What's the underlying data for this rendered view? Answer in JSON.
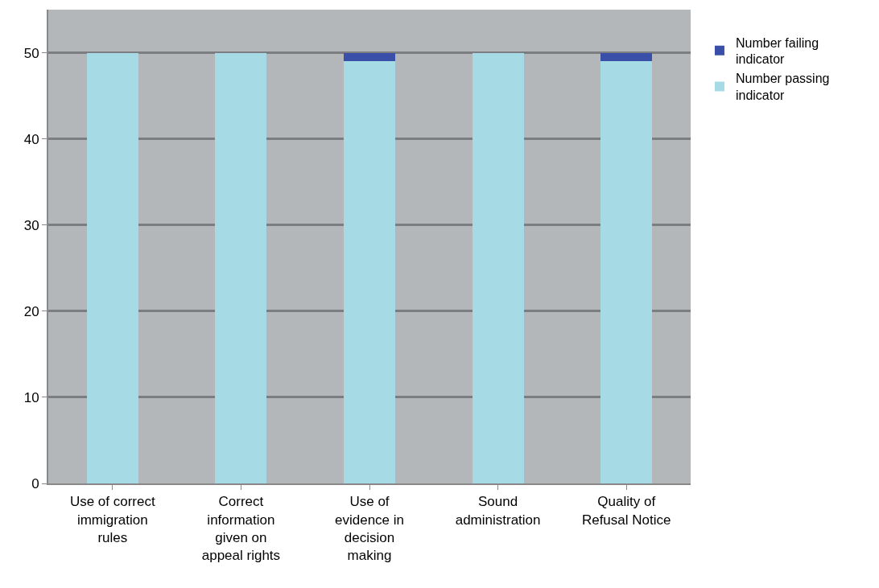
{
  "chart_data": {
    "type": "bar",
    "stacked": true,
    "categories": [
      "Use of correct immigration rules",
      "Correct information given on appeal rights",
      "Use of evidence in decision making",
      "Sound administration",
      "Quality of Refusal Notice"
    ],
    "series": [
      {
        "name": "Number passing indicator",
        "color": "#a6dbe6",
        "values": [
          50,
          50,
          49,
          50,
          49
        ]
      },
      {
        "name": "Number failing indicator",
        "color": "#3a4fa8",
        "values": [
          0,
          0,
          1,
          0,
          1
        ]
      }
    ],
    "ylim": [
      0,
      55
    ],
    "yticks": [
      0,
      10,
      20,
      30,
      40,
      50
    ],
    "grid": "y",
    "legend": "top right"
  }
}
